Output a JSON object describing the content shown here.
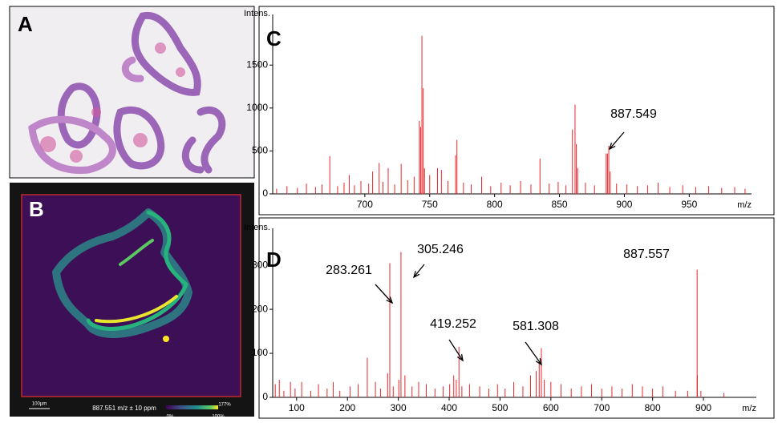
{
  "panels": {
    "A": {
      "label": "A"
    },
    "B": {
      "label": "B",
      "scale_bar": "100µm",
      "caption": "887.551 m/z ± 10 ppm",
      "colorbar_labels": [
        "0%",
        "100%",
        "177%"
      ]
    },
    "C": {
      "label": "C"
    },
    "D": {
      "label": "D"
    }
  },
  "chart_data": [
    {
      "type": "stem",
      "y_label": "Intens.",
      "x_label": "m/z",
      "color": "#e8262b",
      "x": [
        632,
        640,
        648,
        655,
        662,
        667,
        673,
        679,
        684,
        688,
        692,
        697,
        703,
        706,
        711,
        714,
        718,
        723,
        728,
        733,
        738,
        742,
        743,
        744,
        745,
        746,
        750,
        756,
        759,
        764,
        770,
        771,
        776,
        782,
        790,
        797,
        805,
        812,
        820,
        828,
        835,
        842,
        849,
        855,
        860,
        862,
        863,
        864,
        870,
        877,
        886,
        887,
        888,
        889,
        894,
        902,
        910,
        918,
        926,
        935,
        945,
        955,
        965,
        975,
        985,
        993
      ],
      "values": [
        60,
        90,
        70,
        120,
        80,
        110,
        440,
        90,
        130,
        220,
        100,
        150,
        120,
        260,
        360,
        140,
        300,
        110,
        350,
        160,
        200,
        850,
        780,
        1840,
        1230,
        300,
        220,
        300,
        280,
        150,
        450,
        630,
        130,
        110,
        200,
        90,
        130,
        100,
        150,
        110,
        410,
        120,
        140,
        100,
        750,
        1040,
        580,
        300,
        130,
        100,
        470,
        470,
        560,
        260,
        120,
        110,
        90,
        100,
        130,
        80,
        100,
        80,
        90,
        70,
        80,
        60
      ],
      "xlim": [
        629,
        998
      ],
      "xticks": [
        700,
        750,
        800,
        850,
        900,
        950
      ],
      "ylim": [
        0,
        2090
      ],
      "yticks": [
        0,
        500,
        1000,
        1500
      ],
      "annotations": [
        "887.549"
      ]
    },
    {
      "type": "stem",
      "y_label": "Intens.",
      "x_label": "m/z",
      "color": "#e8262b",
      "x": [
        58,
        66,
        75,
        88,
        97,
        110,
        128,
        143,
        160,
        172,
        185,
        205,
        221,
        239,
        255,
        265,
        279,
        283.261,
        290,
        301,
        305.246,
        313,
        327,
        340,
        355,
        372,
        388,
        401,
        409,
        414,
        419.252,
        425,
        440,
        460,
        478,
        495,
        510,
        527,
        545,
        560,
        571,
        577,
        581.308,
        587,
        600,
        620,
        640,
        660,
        680,
        700,
        720,
        740,
        760,
        780,
        800,
        820,
        845,
        869,
        887.557,
        888,
        895,
        940
      ],
      "values": [
        30,
        40,
        15,
        35,
        20,
        35,
        15,
        30,
        20,
        35,
        15,
        25,
        30,
        90,
        35,
        20,
        55,
        305,
        25,
        40,
        330,
        50,
        25,
        35,
        30,
        20,
        25,
        30,
        50,
        40,
        115,
        25,
        30,
        25,
        20,
        30,
        20,
        35,
        25,
        50,
        60,
        80,
        112,
        40,
        35,
        30,
        20,
        25,
        30,
        20,
        25,
        20,
        30,
        25,
        20,
        25,
        15,
        15,
        290,
        50,
        15,
        10
      ],
      "xlim": [
        53,
        1004
      ],
      "xticks": [
        100,
        200,
        300,
        400,
        500,
        600,
        700,
        800,
        900
      ],
      "ylim": [
        0,
        384
      ],
      "yticks": [
        0,
        100,
        200,
        300
      ],
      "annotations": [
        "283.261",
        "305.246",
        "419.252",
        "581.308",
        "887.557"
      ]
    }
  ]
}
